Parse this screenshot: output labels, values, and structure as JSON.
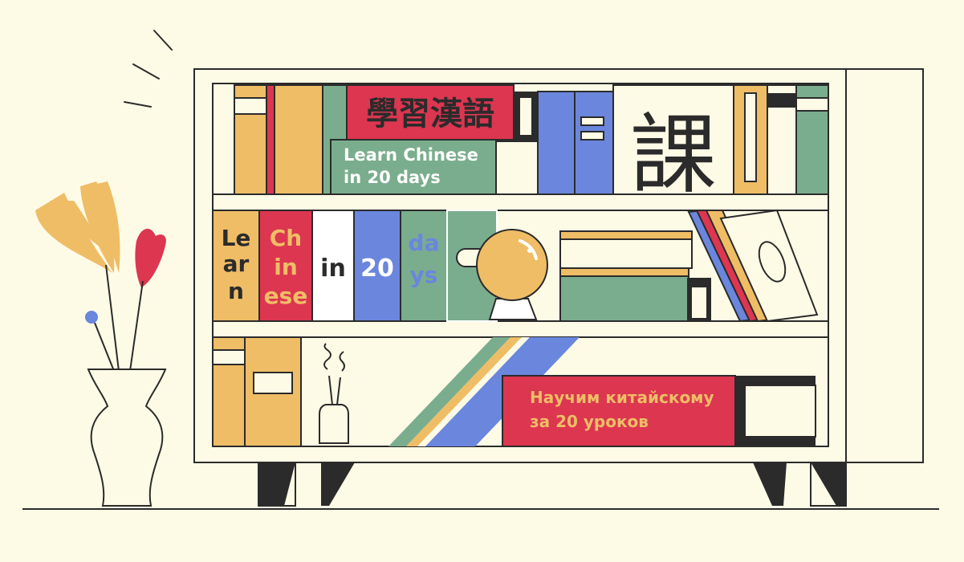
{
  "colors": {
    "background": "#fdfbe6",
    "outline": "#2b2b2b",
    "red": "#dc3650",
    "yellow": "#efbd66",
    "green": "#7aad8d",
    "blue": "#6a86dd",
    "white": "#ffffff"
  },
  "books": {
    "hanzi_title": "學習漢語",
    "top_green": [
      "Learn Chinese",
      "in 20 days"
    ],
    "lesson_char": "課",
    "spine_learn": [
      "Le",
      "ar",
      "n"
    ],
    "spine_chinese": [
      "Ch",
      "in",
      "ese"
    ],
    "spine_in": "in",
    "spine_20": "20",
    "spine_days": [
      "da",
      "ys"
    ],
    "russian": [
      "Научим китайскому",
      "за 20 уроков"
    ]
  },
  "icons": [
    "flower-vase-icon",
    "crystal-ball-icon",
    "incense-icon",
    "sparkle-lines-icon"
  ]
}
